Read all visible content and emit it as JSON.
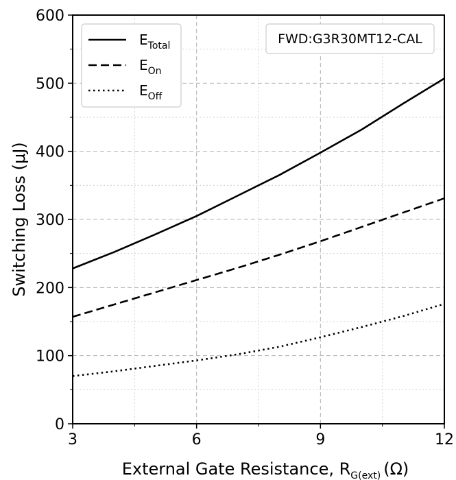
{
  "chart_data": {
    "type": "line",
    "xlabel": "External Gate Resistance, R",
    "xlabel_sub": "G(ext)",
    "xlabel_unit": "(Ω)",
    "ylabel": "Switching Loss (μJ)",
    "xlim": [
      3,
      12
    ],
    "ylim": [
      0,
      600
    ],
    "x_ticks": [
      3,
      6,
      9,
      12
    ],
    "y_ticks": [
      0,
      100,
      200,
      300,
      400,
      500,
      600
    ],
    "grid": true,
    "legend_position": "top-left",
    "annotation": "FWD:G3R30MT12-CAL",
    "series": [
      {
        "name": "E",
        "name_sub": "Total",
        "line_style": "solid",
        "x": [
          3,
          4,
          5,
          6,
          7,
          8,
          9,
          10,
          11,
          12
        ],
        "y": [
          228,
          252,
          278,
          305,
          335,
          365,
          398,
          432,
          470,
          507
        ]
      },
      {
        "name": "E",
        "name_sub": "On",
        "line_style": "dashed",
        "x": [
          3,
          4,
          5,
          6,
          7,
          8,
          9,
          10,
          11,
          12
        ],
        "y": [
          157,
          175,
          193,
          211,
          229,
          248,
          268,
          289,
          310,
          331
        ]
      },
      {
        "name": "E",
        "name_sub": "Off",
        "line_style": "dotted",
        "x": [
          3,
          4,
          5,
          6,
          7,
          8,
          9,
          10,
          11,
          12
        ],
        "y": [
          70,
          77,
          85,
          93,
          102,
          113,
          127,
          142,
          158,
          176
        ]
      }
    ]
  }
}
